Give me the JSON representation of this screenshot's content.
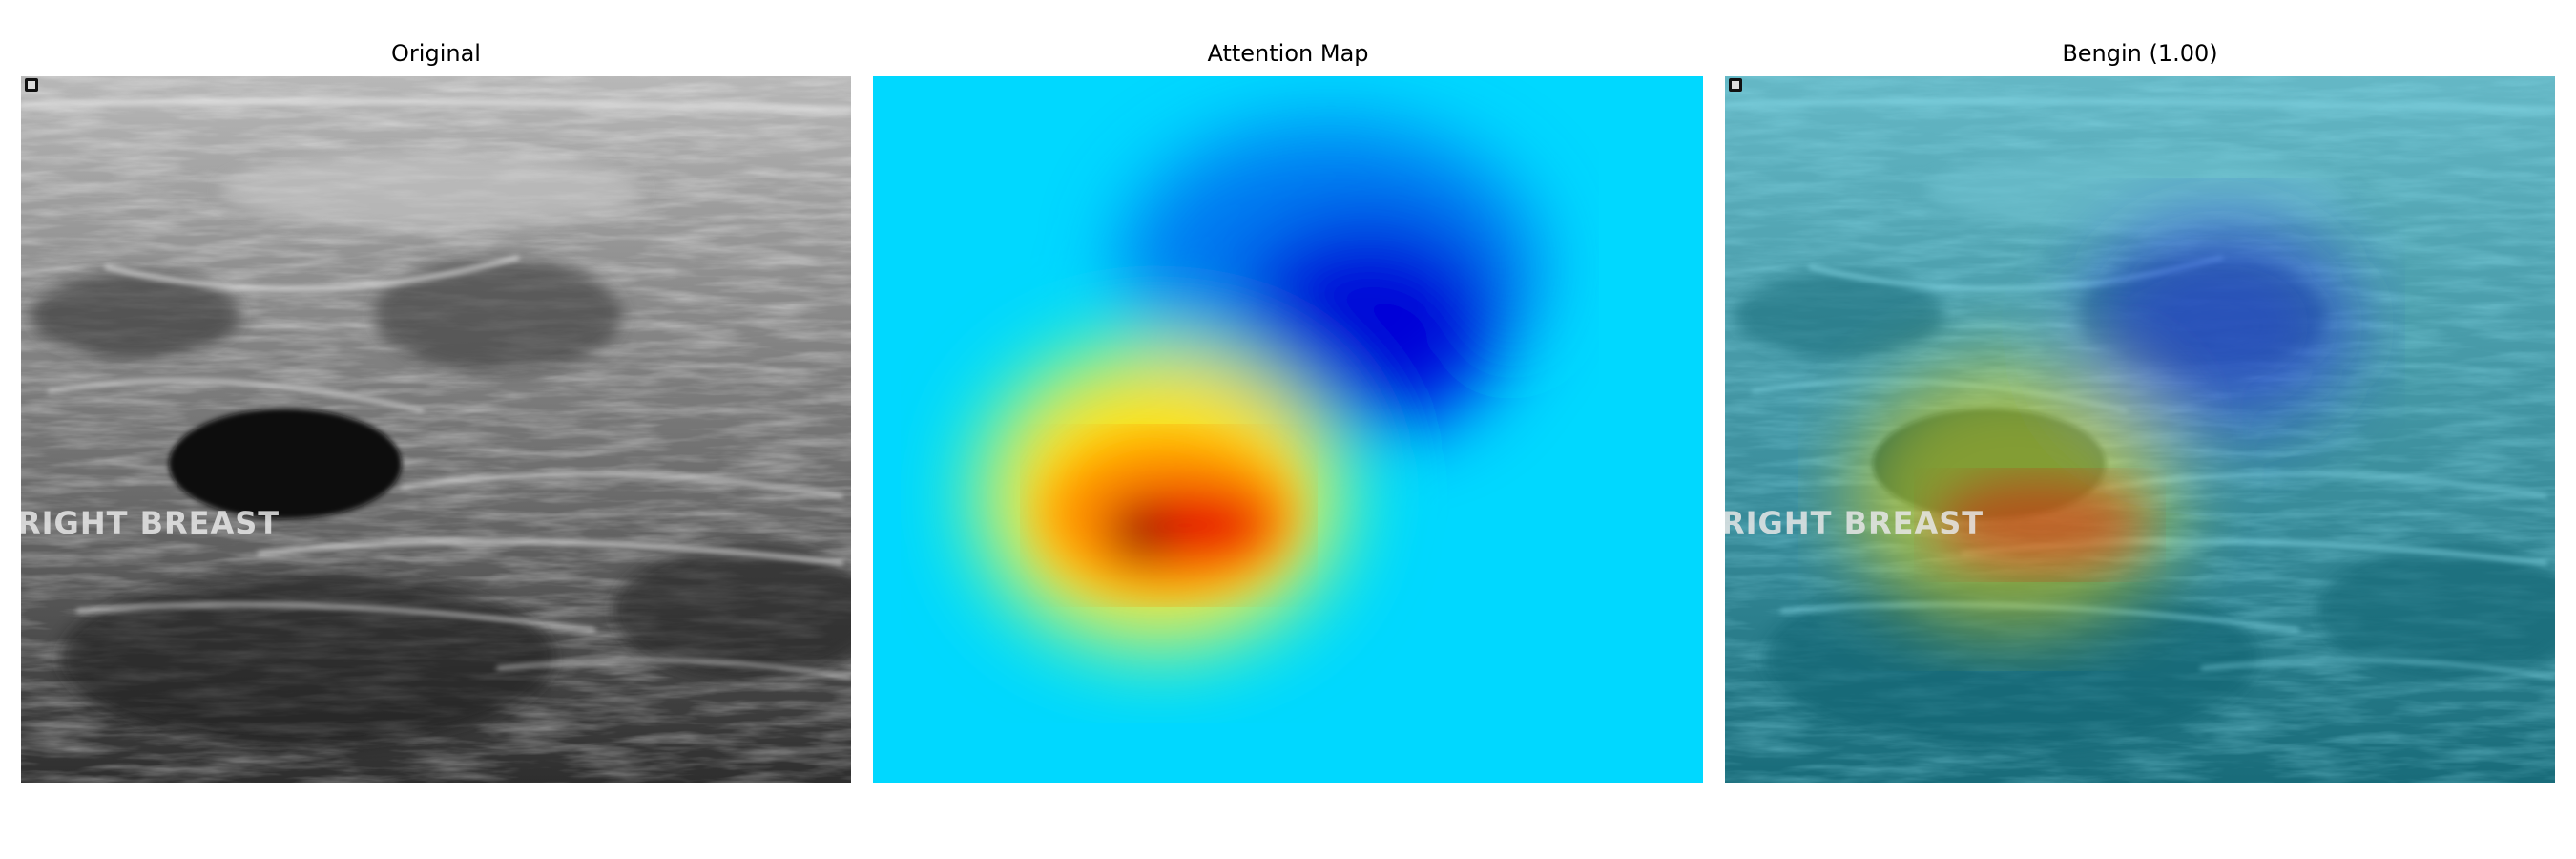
{
  "panels": [
    {
      "id": "original",
      "title": "Original",
      "overlay_text": "RIGHT BREAST"
    },
    {
      "id": "attention",
      "title": "Attention Map"
    },
    {
      "id": "blend",
      "title": "Bengin (1.00)",
      "overlay_text": "RIGHT BREAST"
    }
  ],
  "colors": {
    "background": "#ffffff",
    "heat_cold": "#00d8ff",
    "heat_low": "#0030e0",
    "heat_hot": "#e00000",
    "heat_warm": "#ffd000",
    "blend_tint": "#1a8a9a"
  }
}
